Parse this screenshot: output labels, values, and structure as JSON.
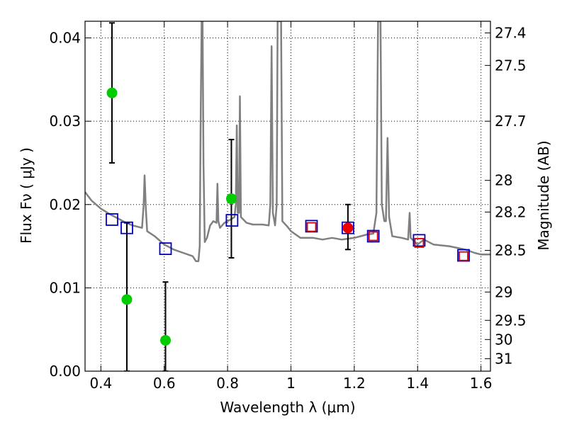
{
  "chart_data": {
    "type": "scatter",
    "xlabel": "Wavelength  λ (μm)",
    "ylabel": "Flux  Fν  ( μJy )",
    "y2label": "Magnitude (AB)",
    "xlim": [
      0.35,
      1.63
    ],
    "ylim": [
      0.0,
      0.042
    ],
    "grid": true,
    "x_ticks": [
      0.4,
      0.6,
      0.8,
      1.0,
      1.2,
      1.4,
      1.6
    ],
    "x_tick_labels": [
      "0.4",
      "0.6",
      "0.8",
      "1",
      "1.2",
      "1.4",
      "1.6"
    ],
    "y_ticks": [
      0.0,
      0.01,
      0.02,
      0.03,
      0.04
    ],
    "y_tick_labels": [
      "0.00",
      "0.01",
      "0.02",
      "0.03",
      "0.04"
    ],
    "y2_ticks": [
      {
        "label": "27.4",
        "flux": 0.0406
      },
      {
        "label": "27.5",
        "flux": 0.0367
      },
      {
        "label": "27.7",
        "flux": 0.03
      },
      {
        "label": "28",
        "flux": 0.0229
      },
      {
        "label": "28.2",
        "flux": 0.0191
      },
      {
        "label": "28.5",
        "flux": 0.0145
      },
      {
        "label": "29",
        "flux": 0.0095
      },
      {
        "label": "29.5",
        "flux": 0.0061
      },
      {
        "label": "30",
        "flux": 0.0038
      },
      {
        "label": "31",
        "flux": 0.0015
      }
    ],
    "series": [
      {
        "style": "line",
        "color": "#808080",
        "points": [
          [
            0.35,
            0.0215
          ],
          [
            0.37,
            0.0205
          ],
          [
            0.4,
            0.0195
          ],
          [
            0.43,
            0.0188
          ],
          [
            0.46,
            0.0182
          ],
          [
            0.48,
            0.0178
          ],
          [
            0.5,
            0.0175
          ],
          [
            0.53,
            0.0172
          ],
          [
            0.535,
            0.02
          ],
          [
            0.538,
            0.0235
          ],
          [
            0.542,
            0.0195
          ],
          [
            0.546,
            0.0168
          ],
          [
            0.57,
            0.0162
          ],
          [
            0.6,
            0.0152
          ],
          [
            0.63,
            0.0146
          ],
          [
            0.66,
            0.0142
          ],
          [
            0.69,
            0.0138
          ],
          [
            0.7,
            0.0132
          ],
          [
            0.708,
            0.0132
          ],
          [
            0.712,
            0.015
          ],
          [
            0.715,
            0.03
          ],
          [
            0.718,
            0.042
          ],
          [
            0.721,
            0.042
          ],
          [
            0.724,
            0.025
          ],
          [
            0.728,
            0.0155
          ],
          [
            0.735,
            0.016
          ],
          [
            0.745,
            0.0175
          ],
          [
            0.755,
            0.018
          ],
          [
            0.765,
            0.0178
          ],
          [
            0.768,
            0.0225
          ],
          [
            0.771,
            0.018
          ],
          [
            0.776,
            0.0172
          ],
          [
            0.79,
            0.0178
          ],
          [
            0.81,
            0.0182
          ],
          [
            0.822,
            0.0185
          ],
          [
            0.826,
            0.02
          ],
          [
            0.829,
            0.0295
          ],
          [
            0.832,
            0.019
          ],
          [
            0.836,
            0.019
          ],
          [
            0.839,
            0.033
          ],
          [
            0.842,
            0.0185
          ],
          [
            0.86,
            0.0178
          ],
          [
            0.88,
            0.0176
          ],
          [
            0.91,
            0.0176
          ],
          [
            0.93,
            0.0175
          ],
          [
            0.935,
            0.02
          ],
          [
            0.939,
            0.039
          ],
          [
            0.943,
            0.019
          ],
          [
            0.95,
            0.0175
          ],
          [
            0.955,
            0.02
          ],
          [
            0.958,
            0.042
          ],
          [
            0.963,
            0.042
          ],
          [
            0.966,
            0.042
          ],
          [
            0.969,
            0.042
          ],
          [
            0.973,
            0.018
          ],
          [
            0.99,
            0.0173
          ],
          [
            1.0,
            0.0168
          ],
          [
            1.03,
            0.016
          ],
          [
            1.07,
            0.016
          ],
          [
            1.1,
            0.0158
          ],
          [
            1.13,
            0.016
          ],
          [
            1.16,
            0.0158
          ],
          [
            1.2,
            0.016
          ],
          [
            1.22,
            0.0162
          ],
          [
            1.24,
            0.0164
          ],
          [
            1.26,
            0.0165
          ],
          [
            1.27,
            0.019
          ],
          [
            1.275,
            0.042
          ],
          [
            1.283,
            0.042
          ],
          [
            1.287,
            0.02
          ],
          [
            1.295,
            0.018
          ],
          [
            1.3,
            0.018
          ],
          [
            1.305,
            0.028
          ],
          [
            1.31,
            0.0185
          ],
          [
            1.32,
            0.0162
          ],
          [
            1.35,
            0.016
          ],
          [
            1.37,
            0.0158
          ],
          [
            1.375,
            0.019
          ],
          [
            1.378,
            0.016
          ],
          [
            1.4,
            0.0152
          ],
          [
            1.42,
            0.0158
          ],
          [
            1.45,
            0.0152
          ],
          [
            1.5,
            0.015
          ],
          [
            1.55,
            0.0146
          ],
          [
            1.58,
            0.0142
          ],
          [
            1.6,
            0.014
          ],
          [
            1.63,
            0.014
          ]
        ]
      },
      {
        "style": "errorbar",
        "color": "#000000",
        "points": [
          {
            "x": 0.435,
            "low": 0.025,
            "high": 0.0418
          },
          {
            "x": 0.482,
            "low": 0.0,
            "high": 0.0178
          },
          {
            "x": 0.604,
            "low": 0.0,
            "high": 0.0107
          },
          {
            "x": 0.812,
            "low": 0.0136,
            "high": 0.0278
          },
          {
            "x": 1.18,
            "low": 0.0146,
            "high": 0.02
          }
        ]
      },
      {
        "style": "open-square",
        "color": "#0000cc",
        "points": [
          [
            0.435,
            0.0182
          ],
          [
            0.482,
            0.0172
          ],
          [
            0.604,
            0.0147
          ],
          [
            0.814,
            0.0181
          ],
          [
            1.065,
            0.0174
          ],
          [
            1.18,
            0.0172
          ],
          [
            1.26,
            0.0162
          ],
          [
            1.405,
            0.0157
          ],
          [
            1.545,
            0.0139
          ]
        ]
      },
      {
        "style": "open-square",
        "color": "#cc0000",
        "points": [
          [
            1.065,
            0.0173
          ],
          [
            1.26,
            0.0162
          ],
          [
            1.405,
            0.0154
          ],
          [
            1.545,
            0.0138
          ]
        ]
      },
      {
        "style": "dot",
        "color": "#00cc00",
        "points": [
          [
            0.435,
            0.0334
          ],
          [
            0.482,
            0.0086
          ],
          [
            0.604,
            0.0037
          ],
          [
            0.812,
            0.0207
          ]
        ]
      },
      {
        "style": "dot",
        "color": "#ee0000",
        "points": [
          [
            1.18,
            0.0172
          ]
        ]
      }
    ]
  }
}
